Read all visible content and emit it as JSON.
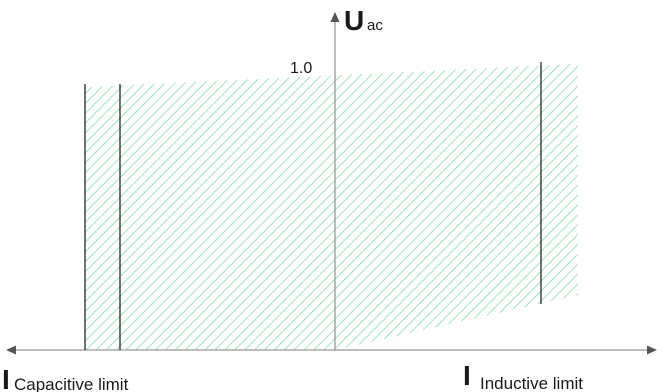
{
  "diagram": {
    "y_axis": {
      "main": "U",
      "subscript": "ac",
      "tick_label": "1.0"
    },
    "x_axis_left": {
      "main": "I",
      "subscript": "Capacitive limit"
    },
    "x_axis_right": {
      "main": "I",
      "subscript": "Inductive limit"
    },
    "colors": {
      "hatch": "#7fe0a8",
      "axis": "#999999",
      "lines": "#000000",
      "text": "#1a1a1a"
    }
  }
}
